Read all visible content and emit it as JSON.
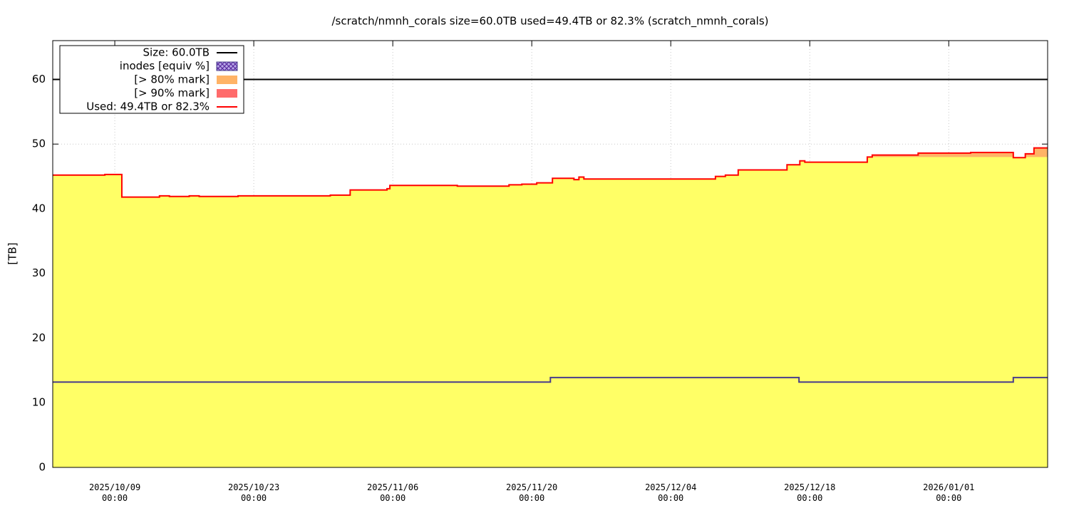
{
  "chart_data": {
    "type": "line",
    "title": "/scratch/nmnh_corals size=60.0TB used=49.4TB or 82.3% (scratch_nmnh_corals)",
    "ylabel": "[TB]",
    "xlim": [
      "2025-10-02 18:00",
      "2026-01-10 23:00"
    ],
    "ylim": [
      0,
      66
    ],
    "yticks": [
      0,
      10,
      20,
      30,
      40,
      50,
      60
    ],
    "xticks": [
      {
        "value": "2025-10-09 00:00",
        "label": "2025/10/09\n00:00"
      },
      {
        "value": "2025-10-23 00:00",
        "label": "2025/10/23\n00:00"
      },
      {
        "value": "2025-11-06 00:00",
        "label": "2025/11/06\n00:00"
      },
      {
        "value": "2025-11-20 00:00",
        "label": "2025/11/20\n00:00"
      },
      {
        "value": "2025-12-04 00:00",
        "label": "2025/12/04\n00:00"
      },
      {
        "value": "2025-12-18 00:00",
        "label": "2025/12/18\n00:00"
      },
      {
        "value": "2026-01-01 00:00",
        "label": "2026/01/01\n00:00"
      }
    ],
    "grid": true,
    "legend": "top-left",
    "size": {
      "name": "Size: 60.0TB",
      "value": 60,
      "color": "#000000"
    },
    "marks": [
      {
        "name": "[> 80% mark]",
        "percent": 80,
        "color": "#ffb366"
      },
      {
        "name": "[> 90% mark]",
        "percent": 90,
        "color": "#ff6b6b"
      }
    ],
    "series": [
      {
        "name": "Used: 49.4TB or 82.3%",
        "color": "#ff0000",
        "fill": "#ffff66",
        "x": [
          "2025-10-02 18:00",
          "2025-10-08 00:00",
          "2025-10-08 00:00",
          "2025-10-09 17:00",
          "2025-10-09 17:00",
          "2025-10-13 12:00",
          "2025-10-13 12:00",
          "2025-10-14 12:00",
          "2025-10-14 12:00",
          "2025-10-16 12:00",
          "2025-10-16 12:00",
          "2025-10-17 12:00",
          "2025-10-17 12:00",
          "2025-10-21 10:00",
          "2025-10-21 10:00",
          "2025-10-30 17:00",
          "2025-10-30 17:00",
          "2025-11-01 17:00",
          "2025-11-01 17:00",
          "2025-11-05 10:00",
          "2025-11-05 10:00",
          "2025-11-05 17:00",
          "2025-11-05 17:00",
          "2025-11-12 12:00",
          "2025-11-12 12:00",
          "2025-11-17 17:00",
          "2025-11-17 17:00",
          "2025-11-19 00:00",
          "2025-11-19 00:00",
          "2025-11-20 12:00",
          "2025-11-20 12:00",
          "2025-11-22 02:00",
          "2025-11-22 02:00",
          "2025-11-24 06:00",
          "2025-11-24 06:00",
          "2025-11-24 18:00",
          "2025-11-24 18:00",
          "2025-11-25 06:00",
          "2025-11-25 06:00",
          "2025-12-08 12:00",
          "2025-12-08 12:00",
          "2025-12-09 12:00",
          "2025-12-09 12:00",
          "2025-12-10 19:00",
          "2025-12-10 19:00",
          "2025-12-15 17:00",
          "2025-12-15 17:00",
          "2025-12-17 00:00",
          "2025-12-17 00:00",
          "2025-12-17 12:00",
          "2025-12-17 12:00",
          "2025-12-23 19:00",
          "2025-12-23 19:00",
          "2025-12-24 07:00",
          "2025-12-24 07:00",
          "2025-12-28 22:00",
          "2025-12-28 22:00",
          "2026-01-03 05:00",
          "2026-01-03 05:00",
          "2026-01-07 12:00",
          "2026-01-07 12:00",
          "2026-01-08 17:00",
          "2026-01-08 17:00",
          "2026-01-09 14:00",
          "2026-01-09 14:00",
          "2026-01-10 23:00"
        ],
        "values": [
          45.2,
          45.2,
          45.3,
          45.3,
          41.8,
          41.8,
          42.0,
          42.0,
          41.9,
          41.9,
          42.0,
          42.0,
          41.9,
          41.9,
          42.0,
          42.0,
          42.1,
          42.1,
          42.9,
          42.9,
          43.1,
          43.1,
          43.6,
          43.6,
          43.5,
          43.5,
          43.7,
          43.7,
          43.8,
          43.8,
          44.0,
          44.0,
          44.7,
          44.7,
          44.5,
          44.5,
          44.9,
          44.9,
          44.6,
          44.6,
          45.0,
          45.0,
          45.2,
          45.2,
          46.0,
          46.0,
          46.8,
          46.8,
          47.4,
          47.4,
          47.2,
          47.2,
          48.0,
          48.0,
          48.3,
          48.3,
          48.6,
          48.6,
          48.7,
          48.7,
          47.9,
          47.9,
          48.5,
          48.5,
          49.4,
          49.4
        ]
      },
      {
        "name": "inodes [equiv %]",
        "color": "#483d8b",
        "x": [
          "2025-10-02 18:00",
          "2025-11-21 21:00",
          "2025-11-21 21:00",
          "2025-12-16 22:00",
          "2025-12-16 22:00",
          "2026-01-07 12:00",
          "2026-01-07 12:00",
          "2026-01-10 23:00"
        ],
        "values": [
          13.2,
          13.2,
          13.9,
          13.9,
          13.2,
          13.2,
          13.9,
          13.9
        ]
      }
    ]
  }
}
